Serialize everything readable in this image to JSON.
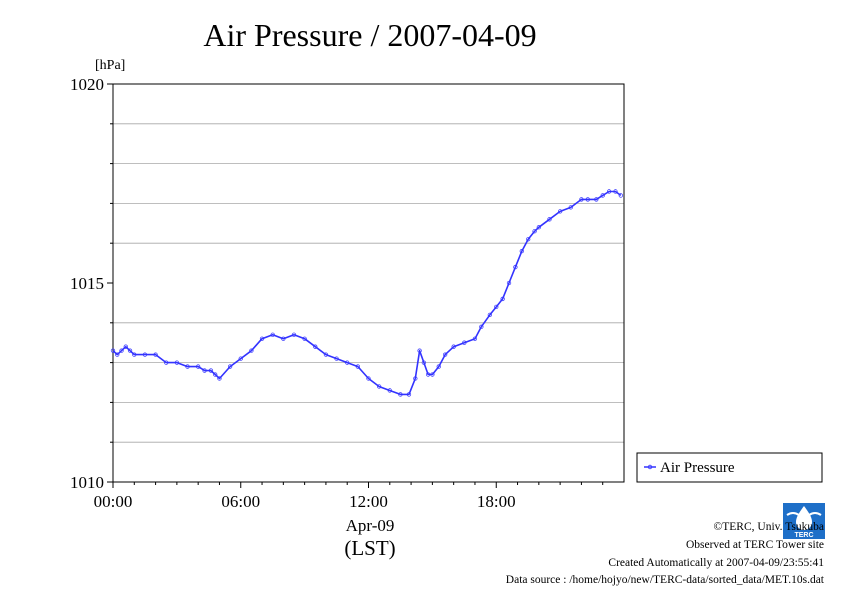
{
  "chart_data": {
    "type": "line",
    "title": "Air Pressure / 2007-04-09",
    "ylabel": "[hPa]",
    "xlabel_date": "Apr-09",
    "xlabel_tz": "(LST)",
    "xlim": [
      0,
      24
    ],
    "ylim": [
      1010,
      1020
    ],
    "x_ticks": [
      0,
      6,
      12,
      18
    ],
    "x_tick_labels": [
      "00:00",
      "06:00",
      "12:00",
      "18:00"
    ],
    "y_ticks": [
      1010,
      1015,
      1020
    ],
    "y_tick_labels": [
      "1010",
      "1015",
      "1020"
    ],
    "y_grid": [
      1011,
      1012,
      1013,
      1014,
      1016,
      1017,
      1018,
      1019
    ],
    "grid": true,
    "legend_position": "right",
    "series": [
      {
        "name": "Air Pressure",
        "color": "#3333ff",
        "x": [
          0.0,
          0.2,
          0.4,
          0.6,
          0.8,
          1.0,
          1.5,
          2.0,
          2.5,
          3.0,
          3.5,
          4.0,
          4.3,
          4.6,
          4.8,
          5.0,
          5.5,
          6.0,
          6.5,
          7.0,
          7.5,
          8.0,
          8.5,
          9.0,
          9.5,
          10.0,
          10.5,
          11.0,
          11.5,
          12.0,
          12.5,
          13.0,
          13.5,
          13.9,
          14.2,
          14.4,
          14.6,
          14.8,
          15.0,
          15.3,
          15.6,
          16.0,
          16.5,
          17.0,
          17.3,
          17.7,
          18.0,
          18.3,
          18.6,
          18.9,
          19.2,
          19.5,
          19.8,
          20.0,
          20.5,
          21.0,
          21.5,
          22.0,
          22.3,
          22.7,
          23.0,
          23.3,
          23.6,
          23.85
        ],
        "y": [
          1013.3,
          1013.2,
          1013.3,
          1013.4,
          1013.3,
          1013.2,
          1013.2,
          1013.2,
          1013.0,
          1013.0,
          1012.9,
          1012.9,
          1012.8,
          1012.8,
          1012.7,
          1012.6,
          1012.9,
          1013.1,
          1013.3,
          1013.6,
          1013.7,
          1013.6,
          1013.7,
          1013.6,
          1013.4,
          1013.2,
          1013.1,
          1013.0,
          1012.9,
          1012.6,
          1012.4,
          1012.3,
          1012.2,
          1012.2,
          1012.6,
          1013.3,
          1013.0,
          1012.7,
          1012.7,
          1012.9,
          1013.2,
          1013.4,
          1013.5,
          1013.6,
          1013.9,
          1014.2,
          1014.4,
          1014.6,
          1015.0,
          1015.4,
          1015.8,
          1016.1,
          1016.3,
          1016.4,
          1016.6,
          1016.8,
          1016.9,
          1017.1,
          1017.1,
          1017.1,
          1017.2,
          1017.3,
          1017.3,
          1017.2
        ]
      }
    ]
  },
  "footer": {
    "copyright": "©TERC, Univ. Tsukuba",
    "observed": "Observed at TERC Tower site",
    "created": "Created Automatically at 2007-04-09/23:55:41",
    "source": "Data source : /home/hojyo/new/TERC-data/sorted_data/MET.10s.dat"
  },
  "logo": {
    "icon": "terc-logo-icon",
    "text": "TERC",
    "color": "#1e6fc8"
  }
}
